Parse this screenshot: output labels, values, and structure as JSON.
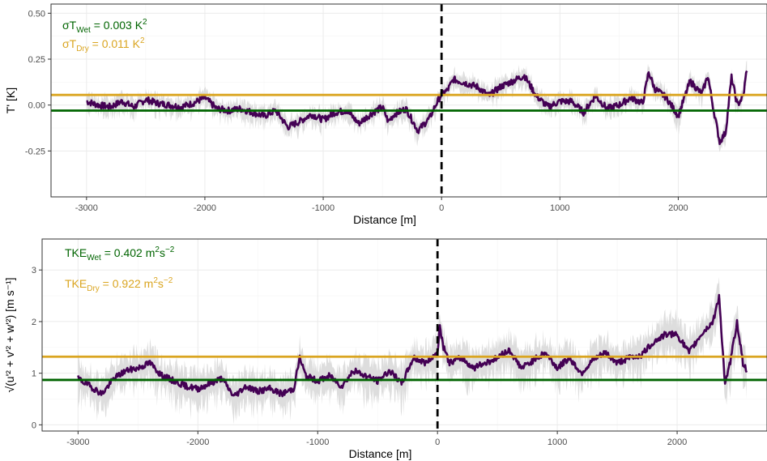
{
  "colors": {
    "series": "#440154",
    "band": "#d9d9d9",
    "wet": "#006400",
    "dry": "#DAA520",
    "grid_major": "#ebebeb",
    "grid_minor": "#f4f4f4",
    "panel_border": "#333333"
  },
  "chart_data": [
    {
      "type": "line",
      "xlabel": "Distance [m]",
      "ylabel": "T' [K]",
      "xlim": [
        -3300,
        2750
      ],
      "ylim": [
        -0.5,
        0.55
      ],
      "x_ticks": [
        -3000,
        -2000,
        -1000,
        0,
        1000,
        2000
      ],
      "x_tick_labels": [
        "-3000",
        "-2000",
        "-1000",
        "0",
        "1000",
        "2000"
      ],
      "y_ticks": [
        -0.25,
        0,
        0.25,
        0.5
      ],
      "y_tick_labels": [
        "-0.25",
        "0.00",
        "0.25",
        "0.50"
      ],
      "grid": true,
      "vline_x": 0,
      "hlines": [
        {
          "label": "dry",
          "y": 0.055
        },
        {
          "label": "wet",
          "y": -0.03
        }
      ],
      "annotations": {
        "wet": {
          "prefix": "σT",
          "sub": "Wet",
          "value": " = 0.003 K",
          "sup": "2"
        },
        "dry": {
          "prefix": "σT",
          "sub": "Dry",
          "value": " = 0.011 K",
          "sup": "2"
        }
      },
      "series_points": [
        [
          -3000,
          0.02
        ],
        [
          -2900,
          0.0
        ],
        [
          -2800,
          -0.01
        ],
        [
          -2700,
          0.02
        ],
        [
          -2600,
          -0.01
        ],
        [
          -2500,
          0.03
        ],
        [
          -2400,
          0.01
        ],
        [
          -2300,
          0.0
        ],
        [
          -2200,
          -0.01
        ],
        [
          -2100,
          0.01
        ],
        [
          -2000,
          0.04
        ],
        [
          -1900,
          -0.02
        ],
        [
          -1800,
          -0.03
        ],
        [
          -1700,
          -0.02
        ],
        [
          -1600,
          -0.04
        ],
        [
          -1500,
          -0.06
        ],
        [
          -1400,
          -0.03
        ],
        [
          -1300,
          -0.12
        ],
        [
          -1200,
          -0.09
        ],
        [
          -1100,
          -0.05
        ],
        [
          -1000,
          -0.08
        ],
        [
          -900,
          -0.04
        ],
        [
          -800,
          -0.03
        ],
        [
          -700,
          -0.1
        ],
        [
          -600,
          -0.05
        ],
        [
          -500,
          -0.01
        ],
        [
          -450,
          -0.09
        ],
        [
          -400,
          -0.05
        ],
        [
          -300,
          -0.02
        ],
        [
          -200,
          -0.14
        ],
        [
          -100,
          -0.07
        ],
        [
          -50,
          0.0
        ],
        [
          0,
          0.06
        ],
        [
          50,
          0.08
        ],
        [
          100,
          0.14
        ],
        [
          200,
          0.12
        ],
        [
          300,
          0.1
        ],
        [
          400,
          0.05
        ],
        [
          500,
          0.1
        ],
        [
          600,
          0.13
        ],
        [
          700,
          0.16
        ],
        [
          800,
          0.05
        ],
        [
          900,
          -0.01
        ],
        [
          1000,
          0.02
        ],
        [
          1100,
          0.02
        ],
        [
          1200,
          -0.04
        ],
        [
          1300,
          0.05
        ],
        [
          1400,
          -0.02
        ],
        [
          1500,
          0.0
        ],
        [
          1600,
          0.04
        ],
        [
          1700,
          0.01
        ],
        [
          1750,
          0.18
        ],
        [
          1800,
          0.09
        ],
        [
          1900,
          0.04
        ],
        [
          2000,
          -0.06
        ],
        [
          2100,
          0.13
        ],
        [
          2200,
          0.06
        ],
        [
          2250,
          0.16
        ],
        [
          2300,
          -0.03
        ],
        [
          2350,
          -0.2
        ],
        [
          2400,
          -0.15
        ],
        [
          2450,
          0.15
        ],
        [
          2500,
          0.0
        ],
        [
          2550,
          0.05
        ],
        [
          2580,
          0.2
        ]
      ]
    },
    {
      "type": "line",
      "xlabel": "Distance [m]",
      "ylabel": "√(u'² + v'² + w'²) [m s⁻¹]",
      "xlim": [
        -3300,
        2750
      ],
      "ylim": [
        -0.12,
        3.6
      ],
      "x_ticks": [
        -3000,
        -2000,
        -1000,
        0,
        1000,
        2000
      ],
      "x_tick_labels": [
        "-3000",
        "-2000",
        "-1000",
        "0",
        "1000",
        "2000"
      ],
      "y_ticks": [
        0,
        1,
        2,
        3
      ],
      "y_tick_labels": [
        "0",
        "1",
        "2",
        "3"
      ],
      "grid": true,
      "vline_x": 0,
      "hlines": [
        {
          "label": "dry",
          "y": 1.32
        },
        {
          "label": "wet",
          "y": 0.87
        }
      ],
      "annotations": {
        "wet": {
          "prefix": "TKE",
          "sub": "Wet",
          "value": " = 0.402 m",
          "sup": "2",
          "value2": "s",
          "sup2": "−2"
        },
        "dry": {
          "prefix": "TKE",
          "sub": "Dry",
          "value": " = 0.922 m",
          "sup": "2",
          "value2": "s",
          "sup2": "−2"
        }
      },
      "series_points": [
        [
          -3000,
          0.9
        ],
        [
          -2900,
          0.75
        ],
        [
          -2800,
          0.6
        ],
        [
          -2700,
          0.9
        ],
        [
          -2600,
          1.05
        ],
        [
          -2500,
          1.1
        ],
        [
          -2400,
          1.2
        ],
        [
          -2300,
          0.95
        ],
        [
          -2200,
          0.85
        ],
        [
          -2100,
          0.75
        ],
        [
          -2000,
          0.7
        ],
        [
          -1900,
          0.8
        ],
        [
          -1800,
          0.9
        ],
        [
          -1700,
          0.55
        ],
        [
          -1600,
          0.75
        ],
        [
          -1500,
          0.65
        ],
        [
          -1400,
          0.7
        ],
        [
          -1300,
          0.6
        ],
        [
          -1200,
          0.7
        ],
        [
          -1150,
          1.3
        ],
        [
          -1100,
          0.95
        ],
        [
          -1000,
          0.85
        ],
        [
          -900,
          0.95
        ],
        [
          -800,
          0.75
        ],
        [
          -700,
          1.05
        ],
        [
          -600,
          0.95
        ],
        [
          -500,
          0.85
        ],
        [
          -400,
          1.05
        ],
        [
          -300,
          0.8
        ],
        [
          -200,
          1.3
        ],
        [
          -100,
          1.2
        ],
        [
          0,
          1.4
        ],
        [
          20,
          1.9
        ],
        [
          50,
          1.5
        ],
        [
          100,
          1.2
        ],
        [
          200,
          1.3
        ],
        [
          300,
          1.1
        ],
        [
          400,
          1.2
        ],
        [
          500,
          1.3
        ],
        [
          600,
          1.45
        ],
        [
          700,
          1.1
        ],
        [
          800,
          1.25
        ],
        [
          900,
          1.4
        ],
        [
          1000,
          1.1
        ],
        [
          1100,
          1.3
        ],
        [
          1200,
          1.0
        ],
        [
          1300,
          1.25
        ],
        [
          1400,
          1.4
        ],
        [
          1500,
          1.2
        ],
        [
          1600,
          1.3
        ],
        [
          1700,
          1.35
        ],
        [
          1800,
          1.6
        ],
        [
          1900,
          1.75
        ],
        [
          2000,
          1.75
        ],
        [
          2100,
          1.4
        ],
        [
          2200,
          1.75
        ],
        [
          2300,
          2.0
        ],
        [
          2350,
          2.5
        ],
        [
          2400,
          0.75
        ],
        [
          2450,
          1.3
        ],
        [
          2500,
          2.0
        ],
        [
          2550,
          1.2
        ],
        [
          2580,
          1.05
        ]
      ]
    }
  ]
}
